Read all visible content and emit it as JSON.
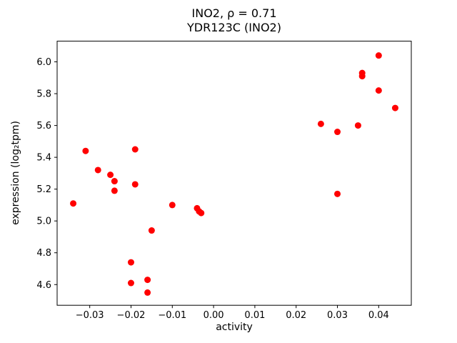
{
  "chart_data": {
    "type": "scatter",
    "title": "INO2, ρ = 0.71",
    "subtitle": "YDR123C (INO2)",
    "xlabel": "activity",
    "ylabel": "expression (log₂tpm)",
    "xlim": [
      -0.0379,
      0.0479
    ],
    "ylim": [
      4.47,
      6.13
    ],
    "xticks": [
      -0.03,
      -0.02,
      -0.01,
      0.0,
      0.01,
      0.02,
      0.03,
      0.04
    ],
    "xtick_labels": [
      "−0.03",
      "−0.02",
      "−0.01",
      "0.00",
      "0.01",
      "0.02",
      "0.03",
      "0.04"
    ],
    "yticks": [
      4.6,
      4.8,
      5.0,
      5.2,
      5.4,
      5.6,
      5.8,
      6.0
    ],
    "ytick_labels": [
      "4.6",
      "4.8",
      "5.0",
      "5.2",
      "5.4",
      "5.6",
      "5.8",
      "6.0"
    ],
    "marker_color": "#ff0000",
    "marker_radius": 4.5,
    "grid": false,
    "legend": "none",
    "points": [
      [
        -0.034,
        5.11
      ],
      [
        -0.031,
        5.44
      ],
      [
        -0.028,
        5.32
      ],
      [
        -0.025,
        5.29
      ],
      [
        -0.024,
        5.25
      ],
      [
        -0.024,
        5.19
      ],
      [
        -0.02,
        4.74
      ],
      [
        -0.02,
        4.61
      ],
      [
        -0.019,
        5.45
      ],
      [
        -0.019,
        5.23
      ],
      [
        -0.016,
        4.63
      ],
      [
        -0.016,
        4.55
      ],
      [
        -0.015,
        4.94
      ],
      [
        -0.01,
        5.1
      ],
      [
        -0.004,
        5.08
      ],
      [
        -0.0035,
        5.06
      ],
      [
        -0.003,
        5.05
      ],
      [
        0.026,
        5.61
      ],
      [
        0.03,
        5.56
      ],
      [
        0.03,
        5.17
      ],
      [
        0.035,
        5.6
      ],
      [
        0.036,
        5.93
      ],
      [
        0.036,
        5.91
      ],
      [
        0.04,
        6.04
      ],
      [
        0.04,
        5.82
      ],
      [
        0.044,
        5.71
      ]
    ]
  }
}
